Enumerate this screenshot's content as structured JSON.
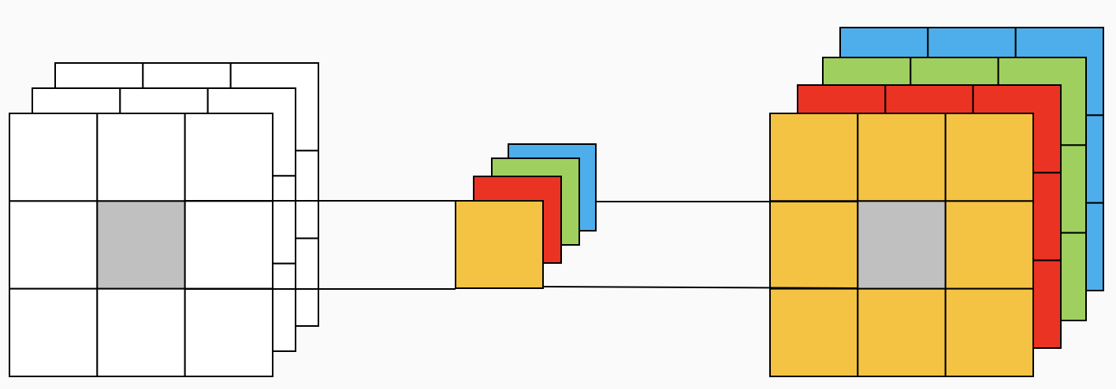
{
  "diagram": {
    "background": "#fafafa",
    "stroke": "#000000",
    "input": {
      "grid": 3,
      "layer_colors": [
        "#ffffff",
        "#ffffff",
        "#ffffff"
      ],
      "center_color": "#c0c0c0"
    },
    "kernel": {
      "layer_colors": [
        "#4daeeb",
        "#9fd05f",
        "#eb3324",
        "#f4c343"
      ]
    },
    "output": {
      "grid": 3,
      "layer_colors": [
        "#4daeeb",
        "#9fd05f",
        "#eb3324",
        "#f4c343"
      ],
      "center_color": "#c0c0c0"
    }
  }
}
